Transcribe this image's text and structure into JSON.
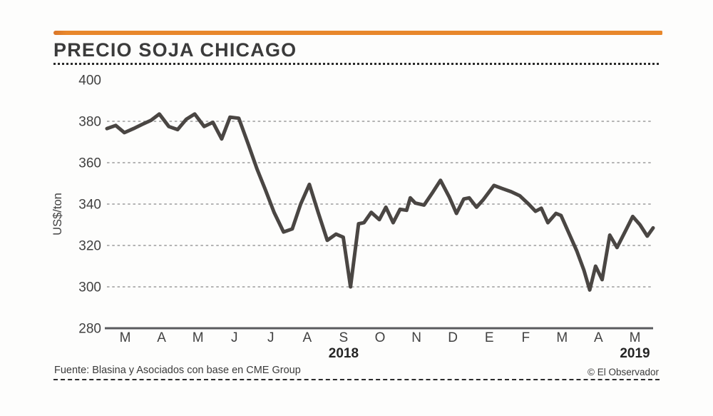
{
  "page": {
    "title": "PRECIO SOJA CHICAGO",
    "source_note": "Fuente: Blasina y Asociados con base en CME Group",
    "credit": "© El Observador"
  },
  "colors": {
    "accent_orange": "#e8872b",
    "line": "#4a4643",
    "grid": "#9b9b9b",
    "text": "#3b3b3b"
  },
  "chart_data": {
    "type": "line",
    "title": "PRECIO SOJA CHICAGO",
    "ylabel": "US$/ton",
    "ylim": [
      280,
      400
    ],
    "yticks": [
      400,
      380,
      360,
      340,
      320,
      300,
      280
    ],
    "gridline_values": [
      380,
      360,
      340,
      320,
      300
    ],
    "grid": "horizontal dotted",
    "legend": "none",
    "x_axis": {
      "span": "March 2018 - May 2019",
      "month_labels": [
        "M",
        "A",
        "M",
        "J",
        "J",
        "A",
        "S",
        "O",
        "N",
        "D",
        "E",
        "F",
        "M",
        "A",
        "M"
      ],
      "year_labels": [
        {
          "label": "2018",
          "month_index": 6
        },
        {
          "label": "2019",
          "month_index": 14
        }
      ]
    },
    "series": [
      {
        "name": "Precio soja Chicago (US$/ton)",
        "x_unit": "months from March 2018 (fractional)",
        "points": [
          [
            0.0,
            376.5
          ],
          [
            0.24,
            378
          ],
          [
            0.48,
            374.5
          ],
          [
            0.73,
            376.5
          ],
          [
            0.97,
            378.5
          ],
          [
            1.21,
            380.5
          ],
          [
            1.44,
            383.5
          ],
          [
            1.7,
            377.5
          ],
          [
            1.94,
            376
          ],
          [
            2.18,
            381
          ],
          [
            2.41,
            383.5
          ],
          [
            2.67,
            377.5
          ],
          [
            2.91,
            379.5
          ],
          [
            3.15,
            371.5
          ],
          [
            3.38,
            382
          ],
          [
            3.62,
            381.5
          ],
          [
            3.88,
            369
          ],
          [
            4.12,
            357
          ],
          [
            4.35,
            347
          ],
          [
            4.59,
            336
          ],
          [
            4.85,
            326.5
          ],
          [
            5.09,
            328
          ],
          [
            5.32,
            340
          ],
          [
            5.56,
            349.5
          ],
          [
            5.8,
            336
          ],
          [
            6.05,
            322.5
          ],
          [
            6.29,
            325.5
          ],
          [
            6.49,
            324
          ],
          [
            6.69,
            300
          ],
          [
            6.91,
            330.5
          ],
          [
            7.06,
            331
          ],
          [
            7.26,
            336
          ],
          [
            7.48,
            332.5
          ],
          [
            7.66,
            338.5
          ],
          [
            7.86,
            331
          ],
          [
            8.05,
            337.5
          ],
          [
            8.23,
            337
          ],
          [
            8.33,
            343
          ],
          [
            8.47,
            340.5
          ],
          [
            8.71,
            339.5
          ],
          [
            8.94,
            345.5
          ],
          [
            9.16,
            351.5
          ],
          [
            9.4,
            343.5
          ],
          [
            9.6,
            335.5
          ],
          [
            9.8,
            342.5
          ],
          [
            9.95,
            343
          ],
          [
            10.15,
            338.5
          ],
          [
            10.33,
            342
          ],
          [
            10.63,
            349
          ],
          [
            10.86,
            347.5
          ],
          [
            11.1,
            346
          ],
          [
            11.34,
            344
          ],
          [
            11.58,
            340
          ],
          [
            11.77,
            336.5
          ],
          [
            11.93,
            338
          ],
          [
            12.11,
            331
          ],
          [
            12.33,
            335.5
          ],
          [
            12.47,
            334.5
          ],
          [
            12.7,
            325.5
          ],
          [
            12.9,
            317.5
          ],
          [
            13.1,
            308
          ],
          [
            13.26,
            298.5
          ],
          [
            13.42,
            310
          ],
          [
            13.6,
            303.5
          ],
          [
            13.81,
            325
          ],
          [
            14.01,
            319
          ],
          [
            14.27,
            328
          ],
          [
            14.44,
            334
          ],
          [
            14.64,
            330
          ],
          [
            14.84,
            324.5
          ],
          [
            15.0,
            328.5
          ]
        ]
      }
    ]
  }
}
